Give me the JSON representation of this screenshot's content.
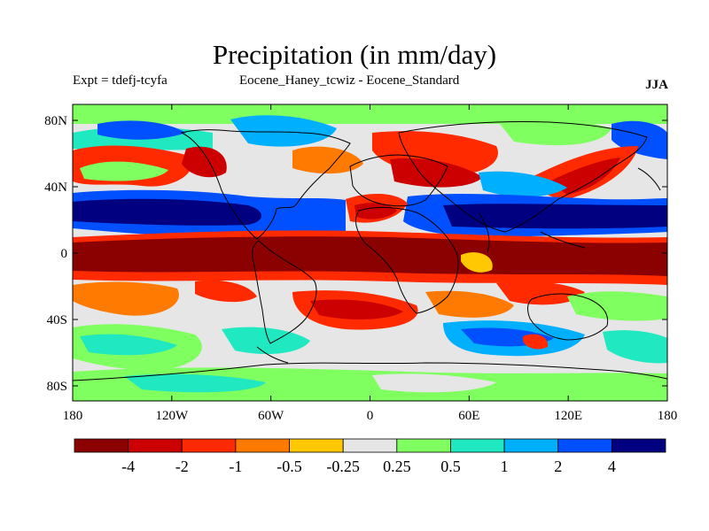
{
  "title": "Precipitation (in mm/day)",
  "experiment": "Expt = tdefj-tcyfa",
  "comparison": "Eocene_Haney_tcwiz - Eocene_Standard",
  "season": "JJA",
  "axes": {
    "lat_ticks": [
      "80N",
      "40N",
      "0",
      "40S",
      "80S"
    ],
    "lon_ticks": [
      "180",
      "120W",
      "60W",
      "0",
      "60E",
      "120E",
      "180"
    ]
  },
  "colorbar": {
    "colors": [
      "#8b0000",
      "#cc0000",
      "#ff2a00",
      "#ff7a00",
      "#ffc800",
      "#e6e6e6",
      "#80ff60",
      "#20e8c0",
      "#00b0ff",
      "#0050ff",
      "#000080"
    ],
    "labels": [
      "-4",
      "-2",
      "-1",
      "-0.5",
      "-0.25",
      "0.25",
      "0.5",
      "1",
      "2",
      "4"
    ]
  }
}
